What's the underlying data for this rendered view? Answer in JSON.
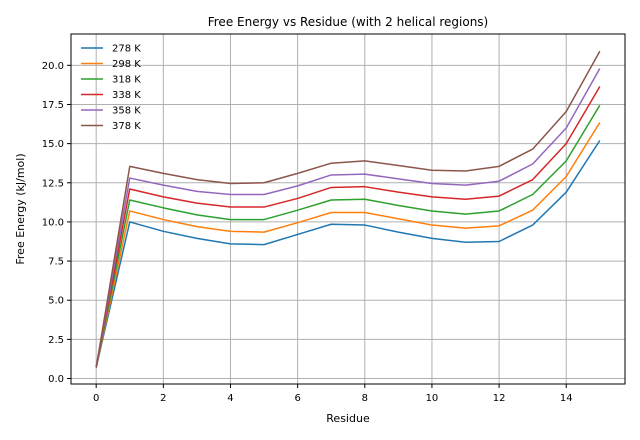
{
  "chart_data": {
    "type": "line",
    "title": "Free Energy vs Residue (with 2 helical regions)",
    "xlabel": "Residue",
    "ylabel": "Free Energy (kJ/mol)",
    "xlim": [
      -0.75,
      15.75
    ],
    "ylim": [
      -0.35,
      22.0
    ],
    "xticks": [
      0,
      2,
      4,
      6,
      8,
      10,
      12,
      14
    ],
    "yticks": [
      0.0,
      2.5,
      5.0,
      7.5,
      10.0,
      12.5,
      15.0,
      17.5,
      20.0
    ],
    "ytick_labels": [
      "0.0",
      "2.5",
      "5.0",
      "7.5",
      "10.0",
      "12.5",
      "15.0",
      "17.5",
      "20.0"
    ],
    "grid": true,
    "legend_position": "upper-left",
    "x": [
      0,
      1,
      2,
      3,
      4,
      5,
      6,
      7,
      8,
      9,
      10,
      11,
      12,
      13,
      14,
      15
    ],
    "series": [
      {
        "name": "278 K",
        "color": "#1f77b4",
        "values": [
          0.7,
          10.0,
          9.4,
          8.95,
          8.6,
          8.55,
          9.2,
          9.85,
          9.8,
          9.35,
          8.95,
          8.7,
          8.75,
          9.8,
          11.9,
          15.2
        ]
      },
      {
        "name": "298 K",
        "color": "#ff7f0e",
        "values": [
          0.7,
          10.7,
          10.15,
          9.7,
          9.4,
          9.35,
          9.95,
          10.6,
          10.6,
          10.2,
          9.8,
          9.6,
          9.75,
          10.75,
          12.9,
          16.35
        ]
      },
      {
        "name": "318 K",
        "color": "#2ca02c",
        "values": [
          0.7,
          11.4,
          10.9,
          10.45,
          10.15,
          10.15,
          10.75,
          11.4,
          11.45,
          11.05,
          10.7,
          10.5,
          10.7,
          11.75,
          13.9,
          17.45
        ]
      },
      {
        "name": "338 K",
        "color": "#d62728",
        "values": [
          0.7,
          12.1,
          11.6,
          11.2,
          10.95,
          10.95,
          11.5,
          12.2,
          12.25,
          11.9,
          11.6,
          11.45,
          11.65,
          12.7,
          15.0,
          18.65
        ]
      },
      {
        "name": "358 K",
        "color": "#9467bd",
        "values": [
          0.7,
          12.8,
          12.35,
          11.95,
          11.75,
          11.75,
          12.3,
          13.0,
          13.05,
          12.75,
          12.45,
          12.35,
          12.6,
          13.7,
          16.0,
          19.8
        ]
      },
      {
        "name": "378 K",
        "color": "#8c564b",
        "values": [
          0.7,
          13.55,
          13.1,
          12.7,
          12.45,
          12.5,
          13.1,
          13.75,
          13.9,
          13.6,
          13.3,
          13.25,
          13.55,
          14.65,
          17.05,
          20.9
        ]
      }
    ]
  }
}
